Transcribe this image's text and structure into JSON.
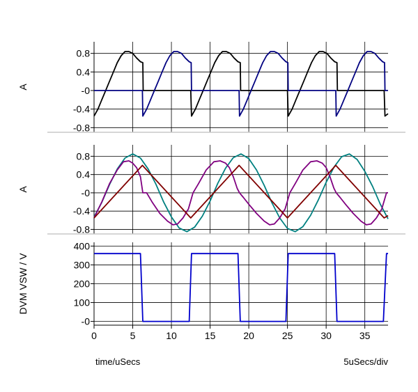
{
  "chart_data": [
    {
      "type": "line",
      "ylabel": "A",
      "ylim": [
        -0.9,
        1.05
      ],
      "yticks": [
        0.8,
        0.4,
        0.0,
        -0.4,
        -0.8
      ],
      "ytick_labels": [
        "0.8",
        "0.4",
        "-0",
        "-0.4",
        "-0.8"
      ],
      "grid": true,
      "series": [
        {
          "color": "#000000",
          "x": [
            0,
            0.5,
            1,
            1.5,
            2,
            2.5,
            3,
            3.5,
            4,
            4.5,
            5,
            5.5,
            6,
            6.3,
            6.35,
            7,
            12.5,
            12.6,
            13.1,
            13.6,
            14.1,
            14.6,
            15.1,
            15.6,
            16.1,
            16.6,
            17.1,
            17.6,
            18.1,
            18.6,
            18.9,
            18.95,
            19.5,
            25,
            25.1,
            25.6,
            26.1,
            26.6,
            27.1,
            27.6,
            28.1,
            28.6,
            29.1,
            29.6,
            30.1,
            30.6,
            31.1,
            31.4,
            31.45,
            32,
            37.5,
            37.6,
            38
          ],
          "y": [
            -0.55,
            -0.4,
            -0.2,
            0,
            0.2,
            0.4,
            0.6,
            0.75,
            0.84,
            0.84,
            0.8,
            0.7,
            0.62,
            0.6,
            0,
            0,
            0,
            -0.55,
            -0.4,
            -0.2,
            0,
            0.2,
            0.4,
            0.6,
            0.75,
            0.84,
            0.84,
            0.8,
            0.7,
            0.62,
            0.6,
            0,
            0,
            0,
            -0.55,
            -0.4,
            -0.2,
            0,
            0.2,
            0.4,
            0.6,
            0.75,
            0.84,
            0.84,
            0.8,
            0.7,
            0.62,
            0.6,
            0,
            0,
            0,
            -0.55,
            -0.5
          ]
        },
        {
          "color": "#000080",
          "x": [
            0,
            6.25,
            6.3,
            6.8,
            7.3,
            7.8,
            8.3,
            8.8,
            9.3,
            9.8,
            10.3,
            10.8,
            11.3,
            11.8,
            12.3,
            12.55,
            12.6,
            18.75,
            18.8,
            19.3,
            19.8,
            20.3,
            20.8,
            21.3,
            21.8,
            22.3,
            22.8,
            23.3,
            23.8,
            24.3,
            24.8,
            25.05,
            25.1,
            31.25,
            31.3,
            31.8,
            32.3,
            32.8,
            33.3,
            33.8,
            34.3,
            34.8,
            35.3,
            35.8,
            36.3,
            36.8,
            37.3,
            37.55,
            37.6,
            38
          ],
          "y": [
            0,
            0,
            -0.55,
            -0.4,
            -0.2,
            0,
            0.2,
            0.4,
            0.6,
            0.75,
            0.84,
            0.84,
            0.8,
            0.7,
            0.62,
            0.6,
            0,
            0,
            -0.55,
            -0.4,
            -0.2,
            0,
            0.2,
            0.4,
            0.6,
            0.75,
            0.84,
            0.84,
            0.8,
            0.7,
            0.62,
            0.6,
            0,
            0,
            -0.55,
            -0.4,
            -0.2,
            0,
            0.2,
            0.4,
            0.6,
            0.75,
            0.84,
            0.84,
            0.8,
            0.7,
            0.62,
            0.6,
            0,
            0
          ]
        }
      ]
    },
    {
      "type": "line",
      "ylabel": "A",
      "ylim": [
        -0.9,
        1.05
      ],
      "yticks": [
        0.8,
        0.4,
        0.0,
        -0.4,
        -0.8
      ],
      "ytick_labels": [
        "0.8",
        "0.4",
        "-0",
        "-0.4",
        "-0.8"
      ],
      "grid": true,
      "series": [
        {
          "color": "#008080",
          "x": [
            0,
            1,
            2,
            3,
            4,
            5,
            6,
            7,
            8,
            9,
            10,
            11,
            12,
            13,
            14,
            15,
            16,
            17,
            18,
            19,
            20,
            21,
            22,
            23,
            24,
            25,
            26,
            27,
            28,
            29,
            30,
            31,
            32,
            33,
            34,
            35,
            36,
            37,
            38
          ],
          "y": [
            -0.53,
            -0.21,
            0.18,
            0.52,
            0.76,
            0.85,
            0.76,
            0.52,
            0.19,
            -0.2,
            -0.53,
            -0.77,
            -0.85,
            -0.75,
            -0.51,
            -0.18,
            0.21,
            0.54,
            0.77,
            0.85,
            0.75,
            0.5,
            0.16,
            -0.22,
            -0.55,
            -0.78,
            -0.85,
            -0.74,
            -0.49,
            -0.15,
            0.23,
            0.56,
            0.79,
            0.85,
            0.73,
            0.47,
            0.14,
            -0.25,
            -0.57
          ]
        },
        {
          "color": "#800080",
          "x": [
            0,
            1,
            2,
            3,
            3.8,
            4.5,
            5,
            5.5,
            6,
            6.3,
            6.8,
            7.5,
            8.5,
            9.5,
            10.2,
            10.8,
            11.5,
            12.2,
            12.8,
            13.5,
            14.5,
            15.5,
            16.3,
            17,
            17.5,
            18,
            18.5,
            18.8,
            19.3,
            20,
            21,
            22,
            22.7,
            23.3,
            24,
            24.7,
            25.3,
            26,
            27,
            28,
            28.8,
            29.5,
            30,
            30.5,
            31,
            31.3,
            31.8,
            32.5,
            33.5,
            34.5,
            35.2,
            35.8,
            36.5,
            37.2,
            37.8,
            38
          ],
          "y": [
            -0.55,
            -0.2,
            0.2,
            0.5,
            0.68,
            0.7,
            0.65,
            0.55,
            0.35,
            0,
            0,
            -0.2,
            -0.45,
            -0.62,
            -0.7,
            -0.68,
            -0.55,
            -0.35,
            0,
            0.2,
            0.5,
            0.68,
            0.7,
            0.65,
            0.55,
            0.35,
            0.1,
            0,
            -0.1,
            -0.25,
            -0.45,
            -0.62,
            -0.7,
            -0.68,
            -0.55,
            -0.35,
            0,
            0.2,
            0.5,
            0.68,
            0.7,
            0.65,
            0.55,
            0.35,
            0.1,
            0,
            -0.1,
            -0.25,
            -0.45,
            -0.62,
            -0.7,
            -0.68,
            -0.55,
            -0.35,
            0,
            0
          ]
        },
        {
          "color": "#800000",
          "x": [
            0,
            6.25,
            12.5,
            18.75,
            25,
            31.25,
            37.5,
            38
          ],
          "y": [
            -0.55,
            0.6,
            -0.55,
            0.6,
            -0.55,
            0.6,
            -0.55,
            -0.5
          ]
        }
      ]
    },
    {
      "type": "line",
      "ylabel": "DVM VSW / V",
      "ylim": [
        -20,
        420
      ],
      "yticks": [
        400,
        300,
        200,
        100,
        0
      ],
      "ytick_labels": [
        "400",
        "300",
        "200",
        "100",
        "-0"
      ],
      "grid": true,
      "xlim": [
        0,
        38
      ],
      "xticks": [
        0,
        5,
        10,
        15,
        20,
        25,
        30,
        35
      ],
      "xtick_labels": [
        "0",
        "5",
        "10",
        "15",
        "20",
        "25",
        "30",
        "35"
      ],
      "series": [
        {
          "color": "#0000cc",
          "x": [
            0,
            6,
            6.3,
            12.3,
            12.6,
            18.6,
            18.9,
            24.8,
            25.1,
            31.1,
            31.4,
            37.4,
            37.8,
            38
          ],
          "y": [
            360,
            360,
            0,
            0,
            360,
            360,
            0,
            0,
            360,
            360,
            0,
            0,
            360,
            360
          ]
        }
      ]
    }
  ],
  "footer": {
    "xlabel": "time/uSecs",
    "scale": "5uSecs/div"
  }
}
